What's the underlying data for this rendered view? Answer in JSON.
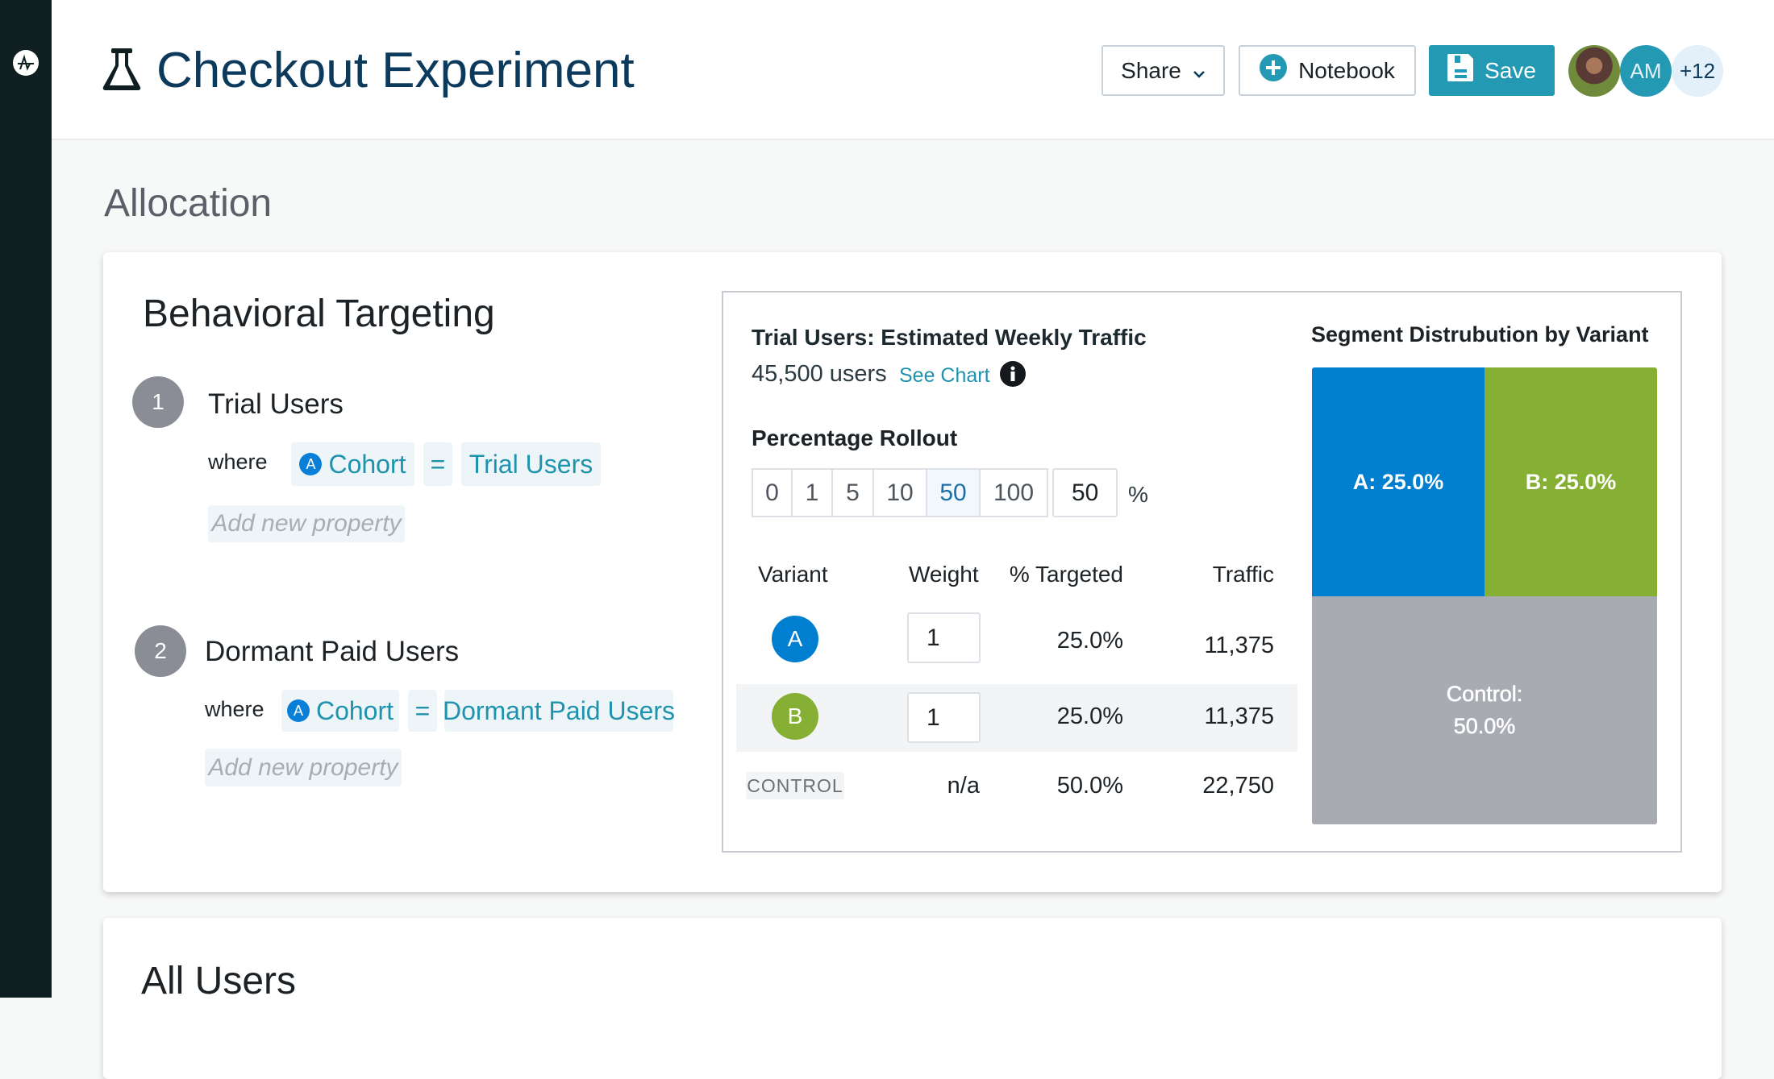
{
  "header": {
    "title": "Checkout Experiment",
    "share_label": "Share",
    "notebook_label": "Notebook",
    "save_label": "Save",
    "avatar_initials": "AM",
    "more_collaborators": "+12"
  },
  "colors": {
    "brand": "#2399b4",
    "title": "#0c3a5c",
    "variant_a": "#007ecf",
    "variant_b": "#86b034",
    "control": "#a9abb3"
  },
  "section_title": "Allocation",
  "targeting": {
    "title": "Behavioral Targeting",
    "segments": [
      {
        "number": "1",
        "name": "Trial Users",
        "where": "where",
        "property": "Cohort",
        "operator": "=",
        "value": "Trial Users",
        "add_placeholder": "Add new property"
      },
      {
        "number": "2",
        "name": "Dormant Paid Users",
        "where": "where",
        "property": "Cohort",
        "operator": "=",
        "value": "Dormant Paid Users",
        "add_placeholder": "Add new property"
      }
    ]
  },
  "traffic": {
    "title": "Trial Users: Estimated Weekly Traffic",
    "users": "45,500 users",
    "see_chart": "See Chart",
    "rollout_label": "Percentage Rollout",
    "rollout_options": [
      "0",
      "1",
      "5",
      "10",
      "50",
      "100"
    ],
    "rollout_selected": "50",
    "rollout_value": "50",
    "percent_sign": "%",
    "columns": [
      "Variant",
      "Weight",
      "% Targeted",
      "Traffic"
    ],
    "rows": [
      {
        "variant": "A",
        "weight": "1",
        "targeted": "25.0%",
        "traffic": "11,375"
      },
      {
        "variant": "B",
        "weight": "1",
        "targeted": "25.0%",
        "traffic": "11,375"
      },
      {
        "variant": "CONTROL",
        "weight": "n/a",
        "targeted": "50.0%",
        "traffic": "22,750"
      }
    ]
  },
  "distribution": {
    "title": "Segment Distrubution by Variant",
    "tiles": [
      {
        "label": "A: 25.0%",
        "percent": 25
      },
      {
        "label": "B: 25.0%",
        "percent": 25
      },
      {
        "label_line1": "Control:",
        "label_line2": "50.0%",
        "percent": 50
      }
    ]
  },
  "next_section_title": "All Users"
}
